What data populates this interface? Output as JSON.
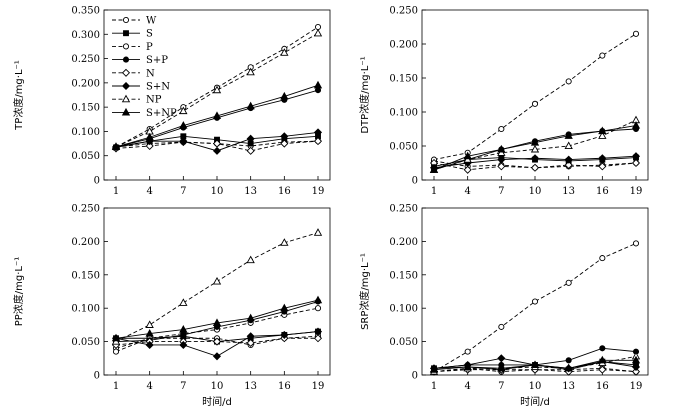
{
  "legend": [
    "W",
    "S",
    "P",
    "S+P",
    "N",
    "S+N",
    "NP",
    "S+NP"
  ],
  "series_styles": [
    {
      "name": "W",
      "marker": "circle-open",
      "dash": true
    },
    {
      "name": "S",
      "marker": "square-filled",
      "dash": false
    },
    {
      "name": "P",
      "marker": "circle-open",
      "dash": true
    },
    {
      "name": "S+P",
      "marker": "circle-filled",
      "dash": false
    },
    {
      "name": "N",
      "marker": "diamond-open",
      "dash": true
    },
    {
      "name": "S+N",
      "marker": "diamond-filled",
      "dash": false
    },
    {
      "name": "NP",
      "marker": "triangle-open",
      "dash": true
    },
    {
      "name": "S+NP",
      "marker": "triangle-filled",
      "dash": false
    }
  ],
  "chart_data": [
    {
      "type": "line",
      "panel": "top-left",
      "xlabel": "",
      "ylabel": "TP浓度/mg·L⁻¹",
      "x": [
        1,
        4,
        7,
        10,
        13,
        16,
        19
      ],
      "ylim": [
        0,
        0.35
      ],
      "yticks": [
        "0",
        "0.050",
        "0.100",
        "0.150",
        "0.200",
        "0.250",
        "0.300",
        "0.350"
      ],
      "ytick_values": [
        0,
        0.05,
        0.1,
        0.15,
        0.2,
        0.25,
        0.3,
        0.35
      ],
      "legend_position": "top-left",
      "series": [
        {
          "name": "W",
          "values": [
            0.068,
            0.075,
            0.078,
            0.075,
            0.07,
            0.078,
            0.08
          ]
        },
        {
          "name": "S",
          "values": [
            0.067,
            0.08,
            0.09,
            0.083,
            0.075,
            0.085,
            0.09
          ]
        },
        {
          "name": "P",
          "values": [
            0.068,
            0.105,
            0.15,
            0.19,
            0.232,
            0.27,
            0.315
          ]
        },
        {
          "name": "S+P",
          "values": [
            0.068,
            0.085,
            0.108,
            0.128,
            0.148,
            0.165,
            0.185
          ]
        },
        {
          "name": "N",
          "values": [
            0.065,
            0.07,
            0.078,
            0.075,
            0.06,
            0.075,
            0.08
          ]
        },
        {
          "name": "S+N",
          "values": [
            0.068,
            0.08,
            0.08,
            0.06,
            0.085,
            0.09,
            0.098
          ]
        },
        {
          "name": "NP",
          "values": [
            0.068,
            0.1,
            0.142,
            0.185,
            0.222,
            0.262,
            0.302
          ]
        },
        {
          "name": "S+NP",
          "values": [
            0.068,
            0.088,
            0.112,
            0.132,
            0.152,
            0.172,
            0.195
          ]
        }
      ]
    },
    {
      "type": "line",
      "panel": "top-right",
      "xlabel": "",
      "ylabel": "DTP浓度/mg·L⁻¹",
      "x": [
        1,
        4,
        7,
        10,
        13,
        16,
        19
      ],
      "ylim": [
        0,
        0.25
      ],
      "yticks": [
        "0",
        "0.050",
        "0.100",
        "0.150",
        "0.200",
        "0.250"
      ],
      "ytick_values": [
        0,
        0.05,
        0.1,
        0.15,
        0.2,
        0.25
      ],
      "series": [
        {
          "name": "W",
          "values": [
            0.028,
            0.02,
            0.022,
            0.018,
            0.02,
            0.022,
            0.025
          ]
        },
        {
          "name": "S",
          "values": [
            0.02,
            0.03,
            0.033,
            0.03,
            0.028,
            0.03,
            0.033
          ]
        },
        {
          "name": "P",
          "values": [
            0.03,
            0.04,
            0.075,
            0.112,
            0.145,
            0.183,
            0.215
          ]
        },
        {
          "name": "S+P",
          "values": [
            0.015,
            0.03,
            0.045,
            0.057,
            0.067,
            0.072,
            0.075
          ]
        },
        {
          "name": "N",
          "values": [
            0.025,
            0.015,
            0.02,
            0.018,
            0.022,
            0.02,
            0.025
          ]
        },
        {
          "name": "S+N",
          "values": [
            0.018,
            0.025,
            0.03,
            0.032,
            0.03,
            0.032,
            0.035
          ]
        },
        {
          "name": "NP",
          "values": [
            0.015,
            0.03,
            0.04,
            0.045,
            0.05,
            0.065,
            0.088
          ]
        },
        {
          "name": "S+NP",
          "values": [
            0.015,
            0.035,
            0.045,
            0.055,
            0.065,
            0.072,
            0.08
          ]
        }
      ]
    },
    {
      "type": "line",
      "panel": "bottom-left",
      "xlabel": "时间/d",
      "ylabel": "PP浓度/mg·L⁻¹",
      "x": [
        1,
        4,
        7,
        10,
        13,
        16,
        19
      ],
      "ylim": [
        0,
        0.25
      ],
      "yticks": [
        "0",
        "0.050",
        "0.100",
        "0.150",
        "0.200",
        "0.250"
      ],
      "ytick_values": [
        0,
        0.05,
        0.1,
        0.15,
        0.2,
        0.25
      ],
      "series": [
        {
          "name": "W",
          "values": [
            0.04,
            0.055,
            0.055,
            0.055,
            0.045,
            0.055,
            0.058
          ]
        },
        {
          "name": "S",
          "values": [
            0.055,
            0.055,
            0.058,
            0.05,
            0.055,
            0.06,
            0.065
          ]
        },
        {
          "name": "P",
          "values": [
            0.035,
            0.055,
            0.062,
            0.068,
            0.078,
            0.09,
            0.1
          ]
        },
        {
          "name": "S+P",
          "values": [
            0.05,
            0.052,
            0.06,
            0.072,
            0.082,
            0.095,
            0.11
          ]
        },
        {
          "name": "N",
          "values": [
            0.045,
            0.05,
            0.05,
            0.05,
            0.048,
            0.055,
            0.055
          ]
        },
        {
          "name": "S+N",
          "values": [
            0.055,
            0.045,
            0.045,
            0.028,
            0.058,
            0.06,
            0.065
          ]
        },
        {
          "name": "NP",
          "values": [
            0.05,
            0.075,
            0.108,
            0.14,
            0.172,
            0.198,
            0.213
          ]
        },
        {
          "name": "S+NP",
          "values": [
            0.055,
            0.062,
            0.068,
            0.078,
            0.085,
            0.1,
            0.112
          ]
        }
      ]
    },
    {
      "type": "line",
      "panel": "bottom-right",
      "xlabel": "时间/d",
      "ylabel": "SRP浓度/mg·L⁻¹",
      "x": [
        1,
        4,
        7,
        10,
        13,
        16,
        19
      ],
      "ylim": [
        0,
        0.25
      ],
      "yticks": [
        "0",
        "0.050",
        "0.100",
        "0.150",
        "0.200",
        "0.250"
      ],
      "ytick_values": [
        0,
        0.05,
        0.1,
        0.15,
        0.2,
        0.25
      ],
      "series": [
        {
          "name": "W",
          "values": [
            0.005,
            0.01,
            0.005,
            0.008,
            0.008,
            0.01,
            0.005
          ]
        },
        {
          "name": "S",
          "values": [
            0.01,
            0.012,
            0.008,
            0.015,
            0.008,
            0.02,
            0.015
          ]
        },
        {
          "name": "P",
          "values": [
            0.005,
            0.035,
            0.072,
            0.11,
            0.138,
            0.175,
            0.197
          ]
        },
        {
          "name": "S+P",
          "values": [
            0.01,
            0.015,
            0.015,
            0.015,
            0.022,
            0.04,
            0.035
          ]
        },
        {
          "name": "N",
          "values": [
            0.005,
            0.008,
            0.008,
            0.008,
            0.005,
            0.008,
            0.005
          ]
        },
        {
          "name": "S+N",
          "values": [
            0.01,
            0.015,
            0.025,
            0.015,
            0.01,
            0.02,
            0.012
          ]
        },
        {
          "name": "NP",
          "values": [
            0.005,
            0.01,
            0.01,
            0.012,
            0.01,
            0.018,
            0.028
          ]
        },
        {
          "name": "S+NP",
          "values": [
            0.008,
            0.012,
            0.01,
            0.015,
            0.01,
            0.022,
            0.022
          ]
        }
      ]
    }
  ]
}
